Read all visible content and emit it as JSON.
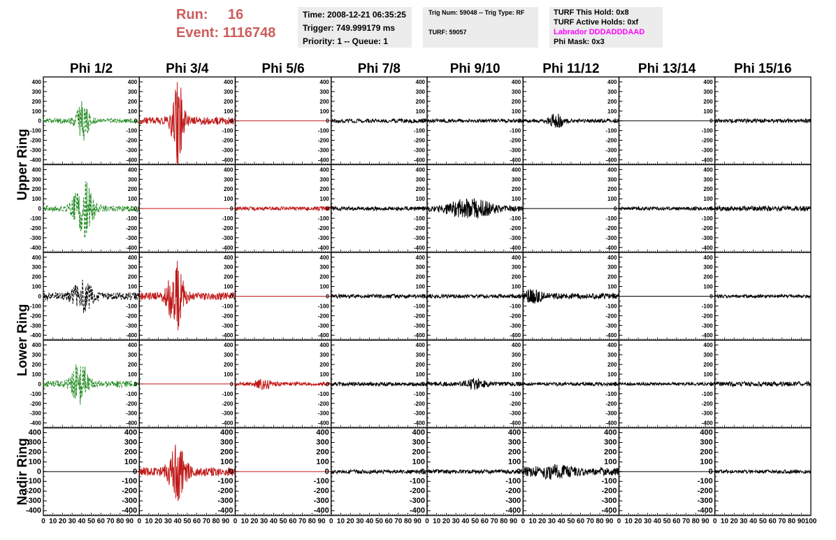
{
  "header": {
    "run_label": "Run:",
    "run_value": "16",
    "event_label": "Event:",
    "event_value": "1116748",
    "time": "Time: 2008-12-21 06:35:25",
    "trigger": "Trigger: 749.999179 ms",
    "priority": "Priority: 1 -- Queue: 1",
    "trig_num": "Trig Num: 59048 -- Trig Type: RF",
    "turf": "TURF: 59057",
    "turf_this_hold": "TURF This Hold: 0x8",
    "turf_active_holds": "TURF Active Holds: 0xf",
    "labrador": "Labrador DDDADDDAAD",
    "phi_mask": "Phi Mask: 0x3"
  },
  "colors": {
    "header_red": "#cd5c5c",
    "labrador_magenta": "#ff00ff",
    "info_bg": "#ececec",
    "trace_green": "#228b22",
    "trace_red": "#c01818",
    "trace_black": "#000000"
  },
  "chart_data": {
    "type": "line",
    "columns": [
      "Phi 1/2",
      "Phi 3/4",
      "Phi 5/6",
      "Phi 7/8",
      "Phi 9/10",
      "Phi 11/12",
      "Phi 13/14",
      "Phi 15/16"
    ],
    "row_labels": [
      {
        "text": "Upper Ring",
        "rows": [
          0,
          1
        ]
      },
      {
        "text": "Lower Ring",
        "rows": [
          2,
          3
        ]
      },
      {
        "text": "Nadir Ring",
        "rows": [
          4
        ]
      }
    ],
    "xlim": [
      0,
      100
    ],
    "ylim": [
      -450,
      450
    ],
    "x_tick_labels": [
      "0",
      "10",
      "20",
      "30",
      "40",
      "50",
      "60",
      "70",
      "80",
      "90",
      "100"
    ],
    "y_tick_labels": [
      "400",
      "300",
      "200",
      "100",
      "0",
      "-100",
      "-200",
      "-300",
      "-400"
    ],
    "y_ticks": [
      400,
      300,
      200,
      100,
      0,
      -100,
      -200,
      -300,
      -400
    ],
    "panels": [
      [
        {
          "color": "green",
          "dashed": true,
          "noise": 25,
          "peak": 190,
          "peak_x": 41,
          "width": 7
        },
        {
          "color": "red",
          "dashed": false,
          "noise": 40,
          "peak": 440,
          "peak_x": 40,
          "width": 6
        },
        {
          "color": "red",
          "dashed": false,
          "flat": true
        },
        {
          "color": "black",
          "dashed": false,
          "noise": 20,
          "peak": 0
        },
        {
          "color": "black",
          "dashed": false,
          "noise": 18,
          "peak": 0
        },
        {
          "color": "black",
          "dashed": false,
          "noise": 18,
          "peak": 70,
          "peak_x": 35,
          "width": 8
        },
        {
          "color": "black",
          "dashed": false,
          "flat": true
        },
        {
          "color": "black",
          "dashed": false,
          "noise": 20,
          "peak": 0
        }
      ],
      [
        {
          "color": "green",
          "dashed": true,
          "noise": 30,
          "peak": 280,
          "peak_x": 42,
          "width": 10
        },
        {
          "color": "red",
          "dashed": false,
          "flat": true
        },
        {
          "color": "red",
          "dashed": false,
          "noise": 20,
          "peak": 0
        },
        {
          "color": "black",
          "dashed": false,
          "noise": 20,
          "peak": 0
        },
        {
          "color": "black",
          "dashed": false,
          "noise": 25,
          "peak": 90,
          "peak_x": 45,
          "width": 25
        },
        {
          "color": "black",
          "dashed": false,
          "flat": true
        },
        {
          "color": "black",
          "dashed": false,
          "noise": 18,
          "peak": 0
        },
        {
          "color": "black",
          "dashed": false,
          "noise": 25,
          "peak": 0
        }
      ],
      [
        {
          "color": "black",
          "dashed": true,
          "noise": 40,
          "peak": 150,
          "peak_x": 41,
          "width": 10
        },
        {
          "color": "red",
          "dashed": false,
          "noise": 40,
          "peak": 340,
          "peak_x": 38,
          "width": 8
        },
        {
          "color": "red",
          "dashed": false,
          "flat": true
        },
        {
          "color": "black",
          "dashed": false,
          "noise": 20,
          "peak": 0
        },
        {
          "color": "black",
          "dashed": false,
          "noise": 20,
          "peak": 0
        },
        {
          "color": "black",
          "dashed": false,
          "noise": 30,
          "peak": 50,
          "peak_x": 10,
          "width": 10
        },
        {
          "color": "black",
          "dashed": false,
          "flat": true
        },
        {
          "color": "black",
          "dashed": false,
          "noise": 18,
          "peak": 0
        }
      ],
      [
        {
          "color": "green",
          "dashed": true,
          "noise": 35,
          "peak": 230,
          "peak_x": 38,
          "width": 8
        },
        {
          "color": "red",
          "dashed": false,
          "flat": true
        },
        {
          "color": "red",
          "dashed": false,
          "noise": 18,
          "peak": 40,
          "peak_x": 30,
          "width": 10
        },
        {
          "color": "black",
          "dashed": false,
          "noise": 20,
          "peak": 0
        },
        {
          "color": "black",
          "dashed": false,
          "noise": 22,
          "peak": 40,
          "peak_x": 50,
          "width": 10
        },
        {
          "color": "black",
          "dashed": false,
          "noise": 18,
          "peak": 0
        },
        {
          "color": "black",
          "dashed": false,
          "noise": 15,
          "peak": 0
        },
        {
          "color": "black",
          "dashed": false,
          "noise": 25,
          "peak": 0
        }
      ],
      [
        {
          "color": "black",
          "dashed": false,
          "flat": true
        },
        {
          "color": "red",
          "dashed": false,
          "noise": 45,
          "peak": 250,
          "peak_x": 40,
          "width": 9
        },
        {
          "color": "red",
          "dashed": false,
          "flat": true
        },
        {
          "color": "black",
          "dashed": false,
          "noise": 20,
          "peak": 0
        },
        {
          "color": "black",
          "dashed": false,
          "noise": 20,
          "peak": 0
        },
        {
          "color": "black",
          "dashed": false,
          "noise": 40,
          "peak": 40,
          "peak_x": 30,
          "width": 20
        },
        {
          "color": "black",
          "dashed": false,
          "flat": true
        },
        {
          "color": "black",
          "dashed": false,
          "noise": 18,
          "peak": 0
        }
      ]
    ]
  }
}
